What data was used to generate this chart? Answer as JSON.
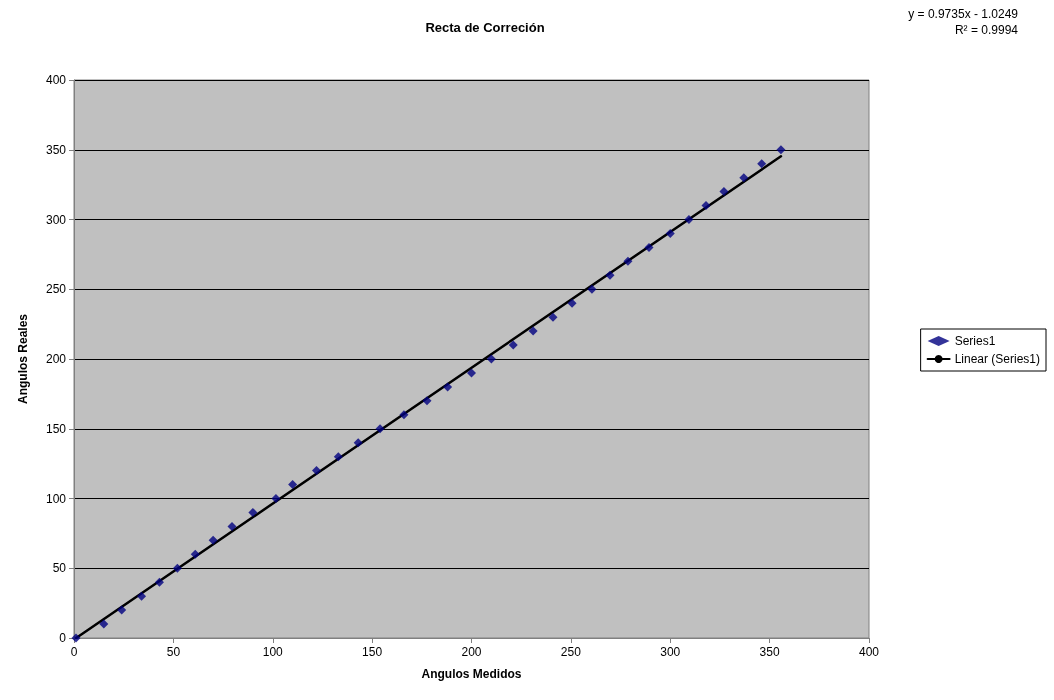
{
  "chart_data": {
    "type": "scatter",
    "title": "Recta de Correción",
    "xlabel": "Angulos Medidos",
    "ylabel": "Angulos Reales",
    "annotations": [
      "y = 0.9735x - 1.0249",
      "R² = 0.9994"
    ],
    "xlim": [
      0,
      400
    ],
    "xticks": [
      0,
      50,
      100,
      150,
      200,
      250,
      300,
      350,
      400
    ],
    "ylim": [
      0,
      400
    ],
    "yticks": [
      0,
      50,
      100,
      150,
      200,
      250,
      300,
      350,
      400
    ],
    "grid": "y",
    "legend": "right",
    "marker": "diamond",
    "series": [
      {
        "name": "Series1",
        "color": "#000080",
        "x": [
          1,
          15,
          24,
          34,
          43,
          52,
          61,
          70,
          79.5,
          90,
          101.6,
          110,
          122,
          133,
          143,
          154,
          166,
          177.6,
          188,
          200,
          210,
          221,
          231,
          241,
          250.6,
          260.6,
          269.7,
          278.7,
          289.3,
          300,
          309.4,
          318,
          327,
          337,
          346,
          355.7
        ],
        "values": [
          0,
          10,
          20,
          30,
          40,
          50,
          60,
          70,
          80,
          90,
          100,
          110,
          120,
          130,
          140,
          150,
          160,
          170,
          180,
          190,
          200,
          210,
          220,
          230,
          240,
          250,
          260,
          270,
          280,
          290,
          300,
          310,
          320,
          330,
          340,
          350
        ]
      },
      {
        "name": "Linear (Series1)",
        "type": "line",
        "color": "#000000",
        "line_style": "solid",
        "marker": "none",
        "x": [
          1.1,
          355.7
        ],
        "values": [
          0.05,
          345.3
        ]
      }
    ]
  }
}
